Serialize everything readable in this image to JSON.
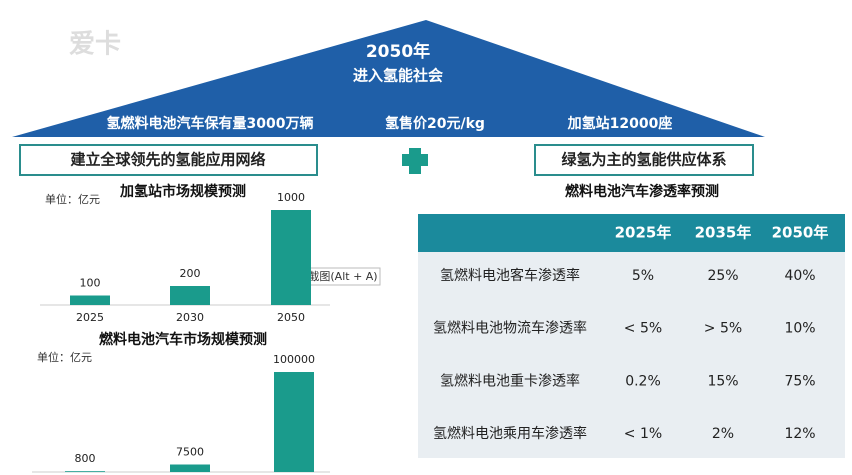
{
  "watermark": "爱卡",
  "header": {
    "title": "2050年",
    "subtitle": "进入氢能社会",
    "targets": [
      "氢燃料电池汽车保有量3000万辆",
      "氢售价20元/kg",
      "加氢站12000座"
    ],
    "left_box": "建立全球领先的氢能应用网络",
    "right_box": "绿氢为主的氢能供应体系"
  },
  "chart_data": [
    {
      "type": "bar",
      "title": "加氢站市场规模预测",
      "unit": "单位：亿元",
      "categories": [
        "2025",
        "2030",
        "2050"
      ],
      "values": [
        100,
        200,
        1000
      ],
      "color": "#1a9b8c"
    },
    {
      "type": "bar",
      "title": "燃料电池汽车市场规模预测",
      "unit": "单位：亿元",
      "values": [
        800,
        7500,
        100000
      ],
      "color": "#1a9b8c"
    }
  ],
  "tooltip": "截图(Alt + A)",
  "table": {
    "title": "燃料电池汽车渗透率预测",
    "header": [
      "2025年",
      "2035年",
      "2050年"
    ],
    "rows": [
      [
        "氢燃料电池客车渗透率",
        "5%",
        "25%",
        "40%"
      ],
      [
        "氢燃料电池物流车渗透率",
        "< 5%",
        "> 5%",
        "10%"
      ],
      [
        "氢燃料电池重卡渗透率",
        "0.2%",
        "15%",
        "75%"
      ],
      [
        "氢燃料电池乘用车渗透率",
        "< 1%",
        "2%",
        "12%"
      ]
    ]
  }
}
